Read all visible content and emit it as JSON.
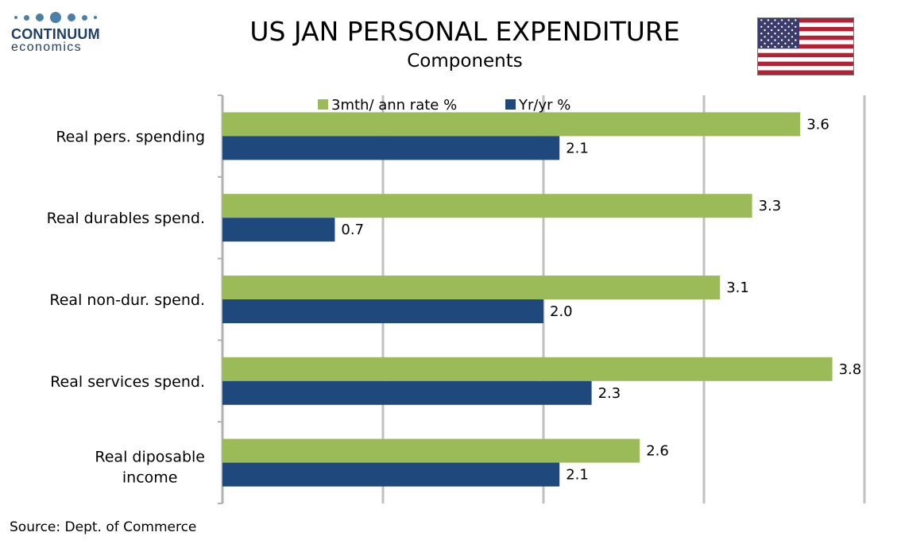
{
  "logo": {
    "name": "CONTINUUM",
    "sub": "economics"
  },
  "title": "US JAN PERSONAL EXPENDITURE",
  "subtitle": "Components",
  "source": "Source: Dept. of Commerce",
  "flag": {
    "icon": "us-flag-icon"
  },
  "chart_data": {
    "type": "bar",
    "orientation": "horizontal",
    "title": "US JAN PERSONAL EXPENDITURE",
    "subtitle": "Components",
    "categories": [
      "Real pers. spending",
      "Real durables spend.",
      "Real non-dur. spend.",
      "Real services spend.",
      "Real diposable income"
    ],
    "series": [
      {
        "name": "3mth/ ann rate %",
        "color": "#9bbb59",
        "values": [
          3.6,
          3.3,
          3.1,
          3.8,
          2.6
        ]
      },
      {
        "name": "Yr/yr %",
        "color": "#1f497d",
        "values": [
          2.1,
          0.7,
          2.0,
          2.3,
          2.1
        ]
      }
    ],
    "xlim": [
      0,
      4
    ],
    "xlabel": "",
    "ylabel": "",
    "grid": "vertical",
    "tick_labels_shown": false,
    "legend": {
      "placement": "top"
    }
  }
}
